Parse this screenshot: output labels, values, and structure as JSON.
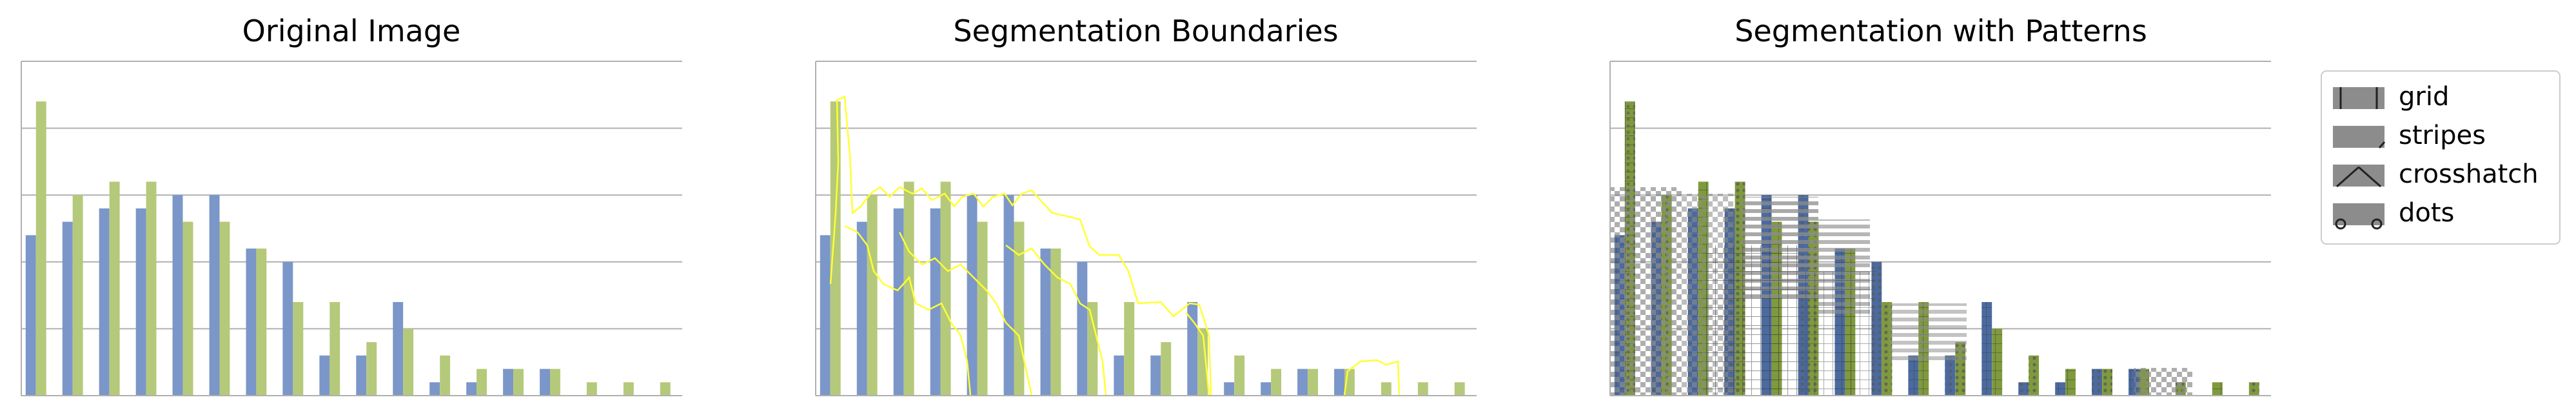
{
  "figure": {
    "colors": {
      "blue": "#7b96c8",
      "green": "#b5c97a",
      "grid_line": "#b0b0b0",
      "boundary": "#ffff33",
      "dark_blue": "#4a6aa0",
      "dark_green": "#7f9a3c",
      "gray_pattern": "#8c8c8c"
    }
  },
  "chart_data": [
    {
      "type": "bar",
      "title": "Original Image",
      "xlabel": "",
      "ylabel": "",
      "ylim": [
        0,
        5
      ],
      "grid": true,
      "series": [
        {
          "color": "blue",
          "values": [
            2.4,
            2.6,
            2.8,
            2.8,
            3.0,
            3.0,
            2.2,
            2.0,
            0.6,
            0.6,
            1.4,
            0.2,
            0.2,
            0.4,
            0.4,
            0,
            0,
            0
          ]
        },
        {
          "color": "green",
          "values": [
            4.4,
            3.0,
            3.2,
            3.2,
            2.6,
            2.6,
            2.2,
            1.4,
            1.4,
            0.8,
            1.0,
            0.6,
            0.4,
            0.4,
            0.4,
            0.2,
            0.2,
            0.2
          ]
        }
      ]
    },
    {
      "type": "bar",
      "title": "Segmentation Boundaries",
      "xlabel": "",
      "ylabel": "",
      "ylim": [
        0,
        5
      ],
      "grid": true,
      "overlay": "segmentation boundaries",
      "series": [
        {
          "color": "blue",
          "values": [
            2.4,
            2.6,
            2.8,
            2.8,
            3.0,
            3.0,
            2.2,
            2.0,
            0.6,
            0.6,
            1.4,
            0.2,
            0.2,
            0.4,
            0.4,
            0,
            0,
            0
          ]
        },
        {
          "color": "green",
          "values": [
            4.4,
            3.0,
            3.2,
            3.2,
            2.6,
            2.6,
            2.2,
            1.4,
            1.4,
            0.8,
            1.0,
            0.6,
            0.4,
            0.4,
            0.4,
            0.2,
            0.2,
            0.2
          ]
        }
      ]
    },
    {
      "type": "bar",
      "title": "Segmentation with Patterns",
      "xlabel": "",
      "ylabel": "",
      "ylim": [
        0,
        5
      ],
      "grid": true,
      "overlay": "patterned segments",
      "legend_position": "outside-right",
      "legend": [
        "grid",
        "stripes",
        "crosshatch",
        "dots"
      ],
      "series": [
        {
          "color": "blue",
          "values": [
            2.4,
            2.6,
            2.8,
            2.8,
            3.0,
            3.0,
            2.2,
            2.0,
            0.6,
            0.6,
            1.4,
            0.2,
            0.2,
            0.4,
            0.4,
            0,
            0,
            0
          ]
        },
        {
          "color": "green",
          "values": [
            4.4,
            3.0,
            3.2,
            3.2,
            2.6,
            2.6,
            2.2,
            1.4,
            1.4,
            0.8,
            1.0,
            0.6,
            0.4,
            0.4,
            0.4,
            0.2,
            0.2,
            0.2
          ]
        }
      ]
    }
  ]
}
